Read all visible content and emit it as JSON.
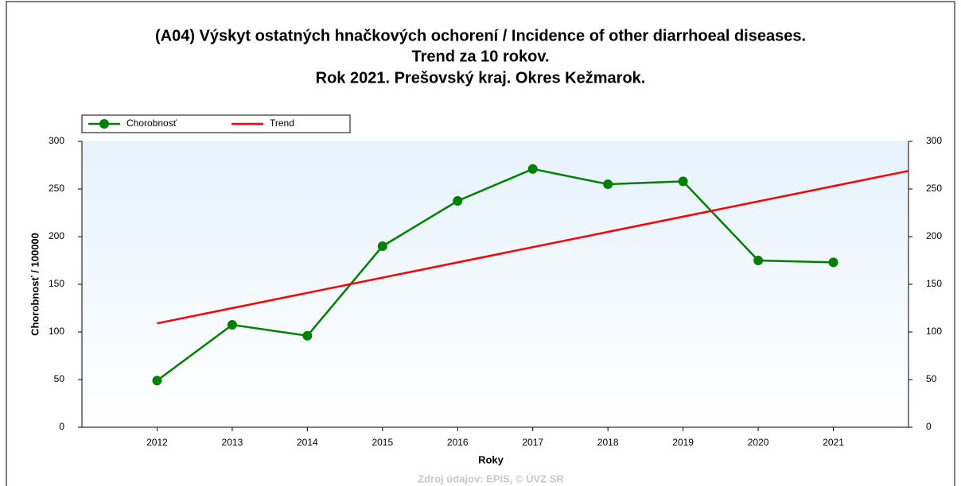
{
  "chart_data": {
    "type": "line",
    "title": [
      "(A04) Výskyt ostatných hnačkových ochorení / Incidence of other diarrhoeal diseases.",
      "Trend za 10 rokov.",
      "Rok 2021. Prešovský kraj. Okres Kežmarok."
    ],
    "x_label": "Roky",
    "y_label": "Chorobnosť / 100000",
    "source": "Zdroj údajov: EPIS, © ÚVZ SR",
    "x": [
      2012,
      2013,
      2014,
      2015,
      2016,
      2017,
      2018,
      2019,
      2020,
      2021
    ],
    "series": [
      {
        "name": "Chorobnosť",
        "color": "#008000",
        "values": [
          49,
          107.5,
          96,
          190,
          237.5,
          271,
          255,
          258,
          175,
          173
        ],
        "markers": true
      },
      {
        "name": "Trend",
        "color": "#ff0000",
        "x": [
          2012,
          2022
        ],
        "values": [
          109,
          269
        ],
        "markers": false
      }
    ],
    "xlim": [
      2011,
      2022
    ],
    "xticks": [
      2012,
      2013,
      2014,
      2015,
      2016,
      2017,
      2018,
      2019,
      2020,
      2021
    ],
    "ylim": [
      0,
      300
    ],
    "yticks": [
      0,
      50,
      100,
      150,
      200,
      250,
      300
    ],
    "legend": "top-left"
  }
}
